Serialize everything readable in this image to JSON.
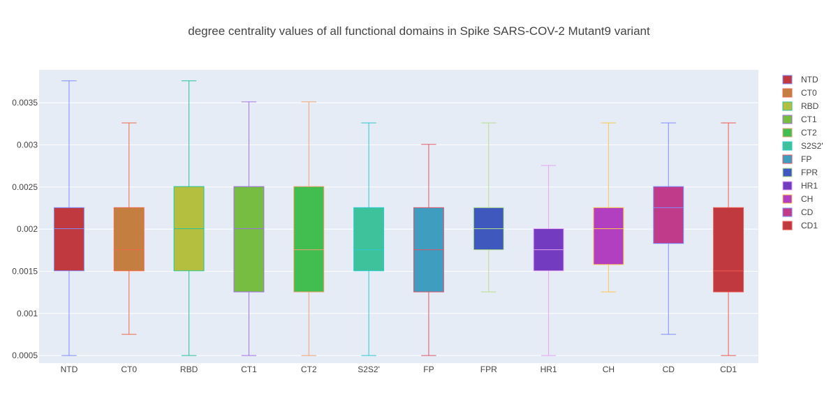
{
  "chart_data": {
    "type": "box",
    "title": "degree centrality values of all functional domains in Spike SARS-COV-2 Mutant9 variant",
    "xlabel": "",
    "ylabel": "",
    "ylim": [
      0.00041,
      0.00389
    ],
    "yticks": [
      0.0005,
      0.001,
      0.0015,
      0.002,
      0.0025,
      0.003,
      0.0035
    ],
    "ytick_labels": [
      "0.0005",
      "0.001",
      "0.0015",
      "0.002",
      "0.0025",
      "0.003",
      "0.0035"
    ],
    "grid": true,
    "legend_position": "right",
    "series": [
      {
        "name": "NTD",
        "color": "#c0393f",
        "line_color": "#7f8cff",
        "min": 0.0005,
        "q1": 0.001505,
        "median": 0.002005,
        "q3": 0.002255,
        "max": 0.00376
      },
      {
        "name": "CT0",
        "color": "#c47e3f",
        "line_color": "#ef6a4f",
        "min": 0.000752,
        "q1": 0.001505,
        "median": 0.001755,
        "q3": 0.002255,
        "max": 0.00326
      },
      {
        "name": "RBD",
        "color": "#b4be3f",
        "line_color": "#28c39a",
        "min": 0.0005,
        "q1": 0.001505,
        "median": 0.002005,
        "q3": 0.002505,
        "max": 0.00376
      },
      {
        "name": "CT1",
        "color": "#77bd42",
        "line_color": "#a36fe8",
        "min": 0.0005,
        "q1": 0.001255,
        "median": 0.002005,
        "q3": 0.002505,
        "max": 0.00351
      },
      {
        "name": "CT2",
        "color": "#41be4f",
        "line_color": "#f3a070",
        "min": 0.0005,
        "q1": 0.001255,
        "median": 0.001755,
        "q3": 0.002505,
        "max": 0.00351
      },
      {
        "name": "S2S2'",
        "color": "#3ec29b",
        "line_color": "#2ec9d0",
        "min": 0.0005,
        "q1": 0.001505,
        "median": 0.001755,
        "q3": 0.002255,
        "max": 0.00326
      },
      {
        "name": "FP",
        "color": "#3f9ebf",
        "line_color": "#e0566b",
        "min": 0.0005,
        "q1": 0.001255,
        "median": 0.001755,
        "q3": 0.002255,
        "max": 0.003005
      },
      {
        "name": "FPR",
        "color": "#3f58bd",
        "line_color": "#b6e08a",
        "min": 0.001255,
        "q1": 0.001755,
        "median": 0.002005,
        "q3": 0.002255,
        "max": 0.00326
      },
      {
        "name": "HR1",
        "color": "#723bc0",
        "line_color": "#e6a4f2",
        "min": 0.0005,
        "q1": 0.001505,
        "median": 0.001755,
        "q3": 0.002005,
        "max": 0.002755
      },
      {
        "name": "CH",
        "color": "#b23fc0",
        "line_color": "#fdc84f",
        "min": 0.001255,
        "q1": 0.00158,
        "median": 0.002005,
        "q3": 0.002255,
        "max": 0.00326
      },
      {
        "name": "CD",
        "color": "#c03b8a",
        "line_color": "#7f8cff",
        "min": 0.000752,
        "q1": 0.00183,
        "median": 0.002255,
        "q3": 0.002505,
        "max": 0.00326
      },
      {
        "name": "CD1",
        "color": "#c0393f",
        "line_color": "#ef5a4f",
        "min": 0.0005,
        "q1": 0.001255,
        "median": 0.001505,
        "q3": 0.002255,
        "max": 0.00326
      }
    ]
  }
}
